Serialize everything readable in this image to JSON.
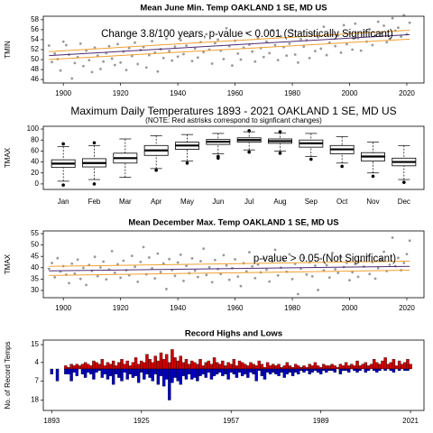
{
  "chart_data": [
    {
      "type": "scatter",
      "title": "Mean June Min. Temp OAKLAND 1 SE, MD US",
      "ylabel": "TMIN",
      "annotation": "Change 3.8/100 years, p-value < 0.001 (Statistically Significant)",
      "xlim": [
        1893,
        2026
      ],
      "xticks": [
        1900,
        1920,
        1940,
        1960,
        1980,
        2000,
        2020
      ],
      "ylim": [
        45.3,
        58.7
      ],
      "yticks": [
        46,
        48,
        50,
        52,
        54,
        56,
        58
      ],
      "color": "#999999",
      "x": [
        1895,
        1896,
        1897,
        1898,
        1899,
        1900,
        1901,
        1902,
        1903,
        1904,
        1905,
        1906,
        1907,
        1908,
        1909,
        1910,
        1911,
        1912,
        1913,
        1914,
        1915,
        1916,
        1917,
        1918,
        1919,
        1920,
        1921,
        1922,
        1923,
        1924,
        1925,
        1926,
        1927,
        1928,
        1929,
        1930,
        1931,
        1932,
        1933,
        1934,
        1935,
        1936,
        1937,
        1938,
        1939,
        1940,
        1941,
        1942,
        1943,
        1944,
        1945,
        1946,
        1947,
        1948,
        1949,
        1950,
        1951,
        1952,
        1953,
        1954,
        1955,
        1956,
        1957,
        1958,
        1959,
        1960,
        1961,
        1962,
        1963,
        1964,
        1965,
        1966,
        1967,
        1968,
        1969,
        1970,
        1971,
        1972,
        1973,
        1974,
        1975,
        1976,
        1977,
        1978,
        1979,
        1980,
        1981,
        1982,
        1983,
        1984,
        1985,
        1986,
        1987,
        1988,
        1989,
        1990,
        1991,
        1992,
        1993,
        1994,
        1995,
        1996,
        1997,
        1998,
        1999,
        2000,
        2001,
        2002,
        2003,
        2004,
        2005,
        2006,
        2007,
        2008,
        2009,
        2010,
        2011,
        2012,
        2013,
        2014,
        2015,
        2016,
        2017,
        2018,
        2019,
        2020,
        2021
      ],
      "values": [
        52.8,
        49.5,
        51.2,
        50.1,
        47.8,
        53.6,
        52.9,
        51.0,
        46.2,
        49.3,
        50.5,
        53.2,
        48.7,
        51.8,
        49.9,
        47.5,
        52.4,
        50.8,
        48.1,
        49.6,
        51.3,
        52.7,
        50.2,
        48.9,
        53.1,
        49.4,
        51.6,
        47.9,
        52.3,
        50.7,
        53.4,
        49.1,
        51.9,
        52.5,
        48.4,
        50.9,
        53.7,
        51.4,
        47.6,
        52.1,
        50.3,
        54.2,
        51.7,
        49.8,
        52.6,
        50.6,
        53.9,
        51.1,
        52.8,
        54.6,
        49.7,
        52.2,
        50.4,
        53.5,
        51.5,
        55.1,
        52.0,
        49.2,
        53.3,
        54.0,
        51.8,
        50.1,
        56.3,
        52.7,
        48.8,
        53.8,
        51.2,
        50.0,
        52.4,
        55.4,
        53.0,
        51.6,
        49.6,
        54.4,
        52.3,
        50.5,
        53.6,
        51.3,
        55.8,
        52.9,
        49.9,
        54.7,
        52.5,
        50.8,
        53.2,
        55.9,
        51.0,
        49.4,
        54.1,
        52.6,
        53.9,
        50.3,
        55.2,
        51.7,
        54.5,
        52.2,
        56.6,
        50.9,
        53.4,
        55.0,
        52.7,
        54.8,
        51.4,
        56.9,
        53.1,
        55.5,
        52.0,
        57.2,
        54.3,
        51.8,
        55.7,
        53.6,
        56.1,
        52.9,
        54.9,
        57.6,
        55.3,
        56.8,
        53.5,
        54.2,
        58.3,
        55.8,
        56.4,
        54.6,
        58.9,
        55.1,
        57.4
      ],
      "lines": [
        {
          "color": "#4b2a72",
          "x": [
            1895,
            2021
          ],
          "values": [
            50.8,
            55.0
          ]
        },
        {
          "color": "#f0a030",
          "x": [
            1895,
            2021
          ],
          "values": [
            51.6,
            55.9
          ]
        },
        {
          "color": "#f0a030",
          "x": [
            1895,
            2021
          ],
          "values": [
            50.0,
            54.1
          ]
        }
      ]
    },
    {
      "type": "box",
      "title": "Maximum Daily Temperatures 1893 - 2021 OAKLAND 1 SE, MD US",
      "subtitle": "(NOTE: Red astrisks correspond to signficant changes)",
      "ylabel": "TMAX",
      "ylim": [
        -10,
        105
      ],
      "yticks": [
        0,
        20,
        40,
        60,
        80,
        100
      ],
      "categories": [
        "Jan",
        "Feb",
        "Mar",
        "Apr",
        "May",
        "Jun",
        "Jul",
        "Aug",
        "Sep",
        "Oct",
        "Nov",
        "Dec"
      ],
      "boxes": [
        {
          "min": 5,
          "q1": 30,
          "median": 37,
          "q3": 44,
          "max": 68,
          "outliers": [
            -2,
            73
          ]
        },
        {
          "min": 8,
          "q1": 31,
          "median": 38,
          "q3": 46,
          "max": 70,
          "outliers": [
            0,
            75
          ]
        },
        {
          "min": 12,
          "q1": 38,
          "median": 47,
          "q3": 56,
          "max": 82,
          "outliers": []
        },
        {
          "min": 28,
          "q1": 52,
          "median": 61,
          "q3": 70,
          "max": 88,
          "outliers": [
            25
          ]
        },
        {
          "min": 42,
          "q1": 63,
          "median": 70,
          "q3": 76,
          "max": 90,
          "outliers": [
            38
          ]
        },
        {
          "min": 55,
          "q1": 72,
          "median": 77,
          "q3": 81,
          "max": 92,
          "outliers": [
            47,
            50
          ]
        },
        {
          "min": 62,
          "q1": 76,
          "median": 80,
          "q3": 84,
          "max": 95,
          "outliers": [
            58,
            97
          ]
        },
        {
          "min": 60,
          "q1": 74,
          "median": 78,
          "q3": 82,
          "max": 93,
          "outliers": [
            56,
            95
          ]
        },
        {
          "min": 50,
          "q1": 67,
          "median": 74,
          "q3": 80,
          "max": 92,
          "outliers": [
            45
          ]
        },
        {
          "min": 38,
          "q1": 55,
          "median": 63,
          "q3": 70,
          "max": 86,
          "outliers": [
            32
          ]
        },
        {
          "min": 20,
          "q1": 42,
          "median": 50,
          "q3": 57,
          "max": 76,
          "outliers": [
            14
          ]
        },
        {
          "min": 8,
          "q1": 33,
          "median": 40,
          "q3": 47,
          "max": 70,
          "outliers": [
            3
          ]
        }
      ]
    },
    {
      "type": "scatter",
      "title": "Mean December Max. Temp OAKLAND 1 SE, MD US",
      "ylabel": "TMAX",
      "annotation": "p-value > 0.05 (Not Significant)",
      "xlim": [
        1893,
        2026
      ],
      "xticks": [
        1900,
        1920,
        1940,
        1960,
        1980,
        2000,
        2020
      ],
      "ylim": [
        26.8,
        56.2
      ],
      "yticks": [
        30,
        35,
        40,
        45,
        50,
        55
      ],
      "color": "#999999",
      "x": [
        1895,
        1896,
        1897,
        1898,
        1899,
        1900,
        1901,
        1902,
        1903,
        1904,
        1905,
        1906,
        1907,
        1908,
        1909,
        1910,
        1911,
        1912,
        1913,
        1914,
        1915,
        1916,
        1917,
        1918,
        1919,
        1920,
        1921,
        1922,
        1923,
        1924,
        1925,
        1926,
        1927,
        1928,
        1929,
        1930,
        1931,
        1932,
        1933,
        1934,
        1935,
        1936,
        1937,
        1938,
        1939,
        1940,
        1941,
        1942,
        1943,
        1944,
        1945,
        1946,
        1947,
        1948,
        1949,
        1950,
        1951,
        1952,
        1953,
        1954,
        1955,
        1956,
        1957,
        1958,
        1959,
        1960,
        1961,
        1962,
        1963,
        1964,
        1965,
        1966,
        1967,
        1968,
        1969,
        1970,
        1971,
        1972,
        1973,
        1974,
        1975,
        1976,
        1977,
        1978,
        1979,
        1980,
        1981,
        1982,
        1983,
        1984,
        1985,
        1986,
        1987,
        1988,
        1989,
        1990,
        1991,
        1992,
        1993,
        1994,
        1995,
        1996,
        1997,
        1998,
        1999,
        2000,
        2001,
        2002,
        2003,
        2004,
        2005,
        2006,
        2007,
        2008,
        2009,
        2010,
        2011,
        2012,
        2013,
        2014,
        2015,
        2016,
        2017,
        2018,
        2019,
        2020,
        2021
      ],
      "values": [
        39.5,
        42.1,
        35.8,
        44.2,
        38.3,
        40.7,
        36.9,
        33.2,
        41.8,
        37.4,
        43.6,
        35.1,
        39.9,
        32.4,
        41.2,
        38.6,
        44.8,
        36.3,
        40.1,
        42.7,
        34.9,
        39.2,
        47.3,
        37.8,
        41.5,
        35.6,
        43.1,
        38.9,
        36.7,
        45.2,
        40.4,
        33.8,
        42.6,
        49.1,
        37.1,
        44.5,
        39.7,
        35.3,
        46.2,
        38.1,
        41.9,
        30.6,
        43.8,
        39.0,
        36.4,
        42.3,
        45.7,
        34.2,
        40.8,
        37.6,
        44.1,
        38.7,
        35.9,
        42.9,
        48.4,
        36.8,
        40.2,
        33.6,
        43.4,
        39.4,
        37.3,
        45.5,
        41.0,
        34.7,
        39.8,
        43.7,
        36.1,
        31.9,
        42.0,
        38.4,
        46.8,
        40.6,
        35.4,
        41.4,
        37.9,
        44.0,
        39.1,
        33.9,
        42.8,
        47.9,
        36.6,
        40.0,
        43.3,
        38.2,
        45.9,
        35.0,
        41.7,
        28.4,
        39.6,
        44.4,
        37.0,
        42.4,
        36.2,
        40.9,
        30.2,
        43.9,
        38.8,
        41.1,
        35.7,
        46.5,
        39.3,
        37.7,
        44.6,
        40.3,
        42.2,
        34.5,
        38.0,
        41.6,
        36.0,
        43.0,
        40.5,
        45.1,
        37.2,
        42.5,
        35.2,
        39.8,
        43.5,
        47.0,
        38.5,
        41.3,
        53.2,
        40.7,
        44.3,
        38.9,
        42.1,
        46.0,
        51.9
      ],
      "lines": [
        {
          "color": "#4b2a72",
          "x": [
            1895,
            2021
          ],
          "values": [
            38.6,
            40.6
          ]
        },
        {
          "color": "#f0a030",
          "x": [
            1895,
            2021
          ],
          "values": [
            40.6,
            42.9
          ]
        },
        {
          "color": "#f0a030",
          "x": [
            1895,
            2021
          ],
          "values": [
            36.6,
            38.9
          ]
        }
      ]
    },
    {
      "type": "bar",
      "title": "Record Highs and Lows",
      "ylabel": "No. of Record Temps",
      "xlim": [
        1890,
        2025.8
      ],
      "xticks": [
        1893,
        1925,
        1957,
        1989,
        2021
      ],
      "ylim": [
        0,
        17.8
      ],
      "yticks": [
        15,
        4
      ],
      "y2lim": [
        0,
        24
      ],
      "y2ticks": [
        7,
        18
      ],
      "x": [
        1893,
        1894,
        1895,
        1896,
        1897,
        1898,
        1899,
        1900,
        1901,
        1902,
        1903,
        1904,
        1905,
        1906,
        1907,
        1908,
        1909,
        1910,
        1911,
        1912,
        1913,
        1914,
        1915,
        1916,
        1917,
        1918,
        1919,
        1920,
        1921,
        1922,
        1923,
        1924,
        1925,
        1926,
        1927,
        1928,
        1929,
        1930,
        1931,
        1932,
        1933,
        1934,
        1935,
        1936,
        1937,
        1938,
        1939,
        1940,
        1941,
        1942,
        1943,
        1944,
        1945,
        1946,
        1947,
        1948,
        1949,
        1950,
        1951,
        1952,
        1953,
        1954,
        1955,
        1956,
        1957,
        1958,
        1959,
        1960,
        1961,
        1962,
        1963,
        1964,
        1965,
        1966,
        1967,
        1968,
        1969,
        1970,
        1971,
        1972,
        1973,
        1974,
        1975,
        1976,
        1977,
        1978,
        1979,
        1980,
        1981,
        1982,
        1983,
        1984,
        1985,
        1986,
        1987,
        1988,
        1989,
        1990,
        1991,
        1992,
        1993,
        1994,
        1995,
        1996,
        1997,
        1998,
        1999,
        2000,
        2001,
        2002,
        2003,
        2004,
        2005,
        2006,
        2007,
        2008,
        2009,
        2010,
        2011,
        2012,
        2013,
        2014,
        2015,
        2016,
        2017,
        2018,
        2019,
        2020,
        2021
      ],
      "series": [
        {
          "color": "#cc0000",
          "axis": "y",
          "values": [
            0,
            0,
            0,
            0,
            0,
            2,
            1,
            3,
            2,
            3,
            2,
            3,
            4,
            3,
            2,
            5,
            4,
            3,
            6,
            2,
            4,
            3,
            5,
            2,
            4,
            6,
            3,
            5,
            2,
            4,
            7,
            3,
            5,
            4,
            9,
            6,
            4,
            8,
            5,
            10,
            6,
            9,
            4,
            12,
            7,
            5,
            8,
            4,
            6,
            3,
            5,
            4,
            3,
            6,
            2,
            4,
            5,
            3,
            7,
            4,
            3,
            5,
            2,
            4,
            3,
            6,
            2,
            5,
            4,
            3,
            2,
            4,
            3,
            2,
            5,
            3,
            1,
            4,
            2,
            3,
            2,
            3,
            1,
            2,
            4,
            2,
            1,
            3,
            2,
            1,
            2,
            1,
            3,
            2,
            4,
            2,
            1,
            3,
            2,
            2,
            3,
            2,
            1,
            3,
            2,
            4,
            2,
            3,
            2,
            5,
            2,
            3,
            4,
            2,
            3,
            6,
            4,
            3,
            5,
            7,
            3,
            4,
            6,
            2,
            5,
            3,
            4,
            6,
            3
          ]
        },
        {
          "color": "#0000bb",
          "axis": "y2",
          "values": [
            3,
            0,
            7,
            0,
            0,
            3,
            3,
            7,
            2,
            4,
            0,
            3,
            5,
            2,
            3,
            6,
            2,
            1,
            5,
            3,
            6,
            4,
            9,
            3,
            5,
            7,
            2,
            6,
            3,
            5,
            4,
            8,
            2,
            6,
            3,
            5,
            7,
            3,
            9,
            4,
            10,
            6,
            18,
            8,
            5,
            7,
            9,
            4,
            6,
            3,
            6,
            5,
            7,
            4,
            3,
            5,
            2,
            6,
            4,
            3,
            2,
            4,
            3,
            6,
            2,
            3,
            5,
            2,
            4,
            3,
            5,
            2,
            3,
            7,
            1,
            4,
            6,
            2,
            3,
            2,
            3,
            4,
            2,
            5,
            3,
            2,
            4,
            2,
            3,
            1,
            2,
            1,
            3,
            2,
            1,
            2,
            3,
            1,
            2,
            1,
            1,
            2,
            0,
            3,
            1,
            1,
            2,
            0,
            1,
            2,
            1,
            0,
            2,
            1,
            0,
            1,
            2,
            1,
            0,
            1,
            0,
            1,
            2,
            0,
            1,
            0,
            1,
            1,
            0
          ]
        }
      ]
    }
  ]
}
